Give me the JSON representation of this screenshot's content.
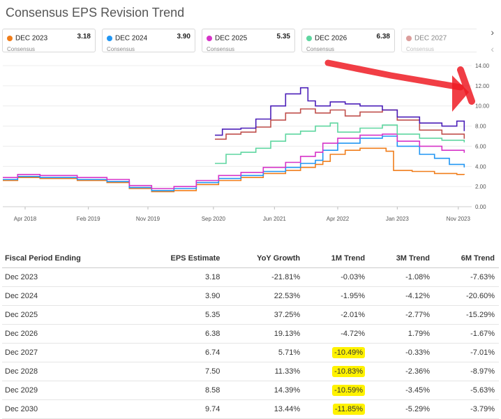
{
  "title": "Consensus EPS Revision Trend",
  "legend": [
    {
      "label": "DEC 2023",
      "value": "3.18",
      "sub": "Consensus",
      "color": "#f07d1a"
    },
    {
      "label": "DEC 2024",
      "value": "3.90",
      "sub": "Consensus",
      "color": "#2196f3"
    },
    {
      "label": "DEC 2025",
      "value": "5.35",
      "sub": "Consensus",
      "color": "#d633c8"
    },
    {
      "label": "DEC 2026",
      "value": "6.38",
      "sub": "Consensus",
      "color": "#5fd6a0"
    },
    {
      "label": "DEC 2027",
      "value": "",
      "sub": "Consensus",
      "color": "#c0504d"
    }
  ],
  "chart_data": {
    "type": "line",
    "title": "Consensus EPS Revision Trend",
    "xlabel": "",
    "ylabel": "",
    "x_ticks": [
      "Apr 2018",
      "Feb 2019",
      "Nov 2019",
      "Sep 2020",
      "Jun 2021",
      "Apr 2022",
      "Jan 2023",
      "Nov 2023"
    ],
    "y_ticks": [
      "0.00",
      "2.00",
      "4.00",
      "6.00",
      "8.00",
      "10.00",
      "12.00",
      "14.00"
    ],
    "ylim": [
      0,
      14
    ],
    "xlim": [
      2017.8,
      2024.1
    ],
    "grid": true,
    "series": [
      {
        "name": "DEC 2023",
        "color": "#f07d1a",
        "points": [
          [
            2017.8,
            2.6
          ],
          [
            2018.0,
            2.9
          ],
          [
            2018.3,
            2.8
          ],
          [
            2018.8,
            2.6
          ],
          [
            2019.2,
            2.4
          ],
          [
            2019.5,
            1.8
          ],
          [
            2019.8,
            1.5
          ],
          [
            2020.1,
            1.6
          ],
          [
            2020.4,
            2.2
          ],
          [
            2020.7,
            2.6
          ],
          [
            2021.0,
            2.9
          ],
          [
            2021.3,
            3.3
          ],
          [
            2021.6,
            3.6
          ],
          [
            2021.8,
            3.9
          ],
          [
            2022.0,
            4.2
          ],
          [
            2022.1,
            4.5
          ],
          [
            2022.2,
            5.2
          ],
          [
            2022.4,
            5.6
          ],
          [
            2022.6,
            5.8
          ],
          [
            2022.8,
            5.8
          ],
          [
            2022.95,
            5.5
          ],
          [
            2023.05,
            3.6
          ],
          [
            2023.3,
            3.5
          ],
          [
            2023.6,
            3.3
          ],
          [
            2023.9,
            3.2
          ],
          [
            2024.0,
            3.18
          ]
        ]
      },
      {
        "name": "DEC 2024",
        "color": "#2196f3",
        "points": [
          [
            2017.8,
            2.7
          ],
          [
            2018.0,
            3.0
          ],
          [
            2018.3,
            2.9
          ],
          [
            2018.8,
            2.7
          ],
          [
            2019.2,
            2.5
          ],
          [
            2019.5,
            1.9
          ],
          [
            2019.8,
            1.6
          ],
          [
            2020.1,
            1.8
          ],
          [
            2020.4,
            2.4
          ],
          [
            2020.7,
            2.8
          ],
          [
            2021.0,
            3.1
          ],
          [
            2021.3,
            3.5
          ],
          [
            2021.6,
            3.9
          ],
          [
            2021.8,
            4.3
          ],
          [
            2022.0,
            4.6
          ],
          [
            2022.1,
            5.6
          ],
          [
            2022.3,
            6.3
          ],
          [
            2022.6,
            6.8
          ],
          [
            2022.9,
            7.0
          ],
          [
            2023.1,
            6.0
          ],
          [
            2023.4,
            5.2
          ],
          [
            2023.6,
            4.8
          ],
          [
            2023.8,
            4.2
          ],
          [
            2024.0,
            3.9
          ]
        ]
      },
      {
        "name": "DEC 2025",
        "color": "#d633c8",
        "points": [
          [
            2017.8,
            2.9
          ],
          [
            2018.0,
            3.2
          ],
          [
            2018.3,
            3.1
          ],
          [
            2018.8,
            2.9
          ],
          [
            2019.2,
            2.7
          ],
          [
            2019.5,
            2.1
          ],
          [
            2019.8,
            1.8
          ],
          [
            2020.1,
            2.0
          ],
          [
            2020.4,
            2.6
          ],
          [
            2020.7,
            3.1
          ],
          [
            2021.0,
            3.4
          ],
          [
            2021.3,
            3.9
          ],
          [
            2021.6,
            4.4
          ],
          [
            2021.8,
            5.0
          ],
          [
            2022.0,
            5.4
          ],
          [
            2022.1,
            6.3
          ],
          [
            2022.3,
            6.8
          ],
          [
            2022.6,
            7.1
          ],
          [
            2022.9,
            7.2
          ],
          [
            2023.1,
            6.5
          ],
          [
            2023.4,
            6.0
          ],
          [
            2023.7,
            5.6
          ],
          [
            2024.0,
            5.35
          ]
        ]
      },
      {
        "name": "DEC 2026",
        "color": "#5fd6a0",
        "points": [
          [
            2020.65,
            4.3
          ],
          [
            2020.8,
            5.2
          ],
          [
            2021.0,
            5.4
          ],
          [
            2021.2,
            5.8
          ],
          [
            2021.4,
            6.5
          ],
          [
            2021.6,
            7.2
          ],
          [
            2021.8,
            7.5
          ],
          [
            2022.0,
            8.0
          ],
          [
            2022.2,
            8.3
          ],
          [
            2022.3,
            7.4
          ],
          [
            2022.6,
            7.8
          ],
          [
            2022.9,
            8.1
          ],
          [
            2023.1,
            7.2
          ],
          [
            2023.4,
            6.8
          ],
          [
            2023.7,
            6.6
          ],
          [
            2024.0,
            6.38
          ]
        ]
      },
      {
        "name": "DEC 2027",
        "color": "#c0504d",
        "points": [
          [
            2020.65,
            6.7
          ],
          [
            2020.8,
            7.2
          ],
          [
            2021.0,
            7.4
          ],
          [
            2021.2,
            7.9
          ],
          [
            2021.4,
            8.6
          ],
          [
            2021.6,
            9.3
          ],
          [
            2021.8,
            9.7
          ],
          [
            2022.0,
            9.3
          ],
          [
            2022.2,
            9.6
          ],
          [
            2022.4,
            9.0
          ],
          [
            2022.6,
            9.4
          ],
          [
            2022.9,
            9.6
          ],
          [
            2023.1,
            8.6
          ],
          [
            2023.4,
            7.6
          ],
          [
            2023.7,
            7.2
          ],
          [
            2024.0,
            6.74
          ]
        ]
      },
      {
        "name": "",
        "color": "#4b1fb8",
        "points": [
          [
            2020.65,
            7.1
          ],
          [
            2020.75,
            7.7
          ],
          [
            2021.0,
            7.8
          ],
          [
            2021.2,
            8.7
          ],
          [
            2021.4,
            10.0
          ],
          [
            2021.6,
            11.2
          ],
          [
            2021.8,
            11.8
          ],
          [
            2021.9,
            10.5
          ],
          [
            2022.0,
            10.0
          ],
          [
            2022.2,
            10.4
          ],
          [
            2022.4,
            10.2
          ],
          [
            2022.6,
            10.0
          ],
          [
            2022.9,
            9.6
          ],
          [
            2023.1,
            8.9
          ],
          [
            2023.4,
            8.3
          ],
          [
            2023.7,
            8.0
          ],
          [
            2023.9,
            8.5
          ],
          [
            2024.0,
            7.5
          ]
        ]
      }
    ]
  },
  "table": {
    "headers": [
      "Fiscal Period Ending",
      "EPS Estimate",
      "YoY Growth",
      "1M Trend",
      "3M Trend",
      "6M Trend"
    ],
    "rows": [
      {
        "period": "Dec 2023",
        "eps": "3.18",
        "yoy": "-21.81%",
        "m1": "-0.03%",
        "m3": "-1.08%",
        "m6": "-7.63%"
      },
      {
        "period": "Dec 2024",
        "eps": "3.90",
        "yoy": "22.53%",
        "m1": "-1.95%",
        "m3": "-4.12%",
        "m6": "-20.60%"
      },
      {
        "period": "Dec 2025",
        "eps": "5.35",
        "yoy": "37.25%",
        "m1": "-2.01%",
        "m3": "-2.77%",
        "m6": "-15.29%"
      },
      {
        "period": "Dec 2026",
        "eps": "6.38",
        "yoy": "19.13%",
        "m1": "-4.72%",
        "m3": "1.79%",
        "m6": "-1.67%"
      },
      {
        "period": "Dec 2027",
        "eps": "6.74",
        "yoy": "5.71%",
        "m1": "-10.49%",
        "m3": "-0.33%",
        "m6": "-7.01%"
      },
      {
        "period": "Dec 2028",
        "eps": "7.50",
        "yoy": "11.33%",
        "m1": "-10.83%",
        "m3": "-2.36%",
        "m6": "-8.97%"
      },
      {
        "period": "Dec 2029",
        "eps": "8.58",
        "yoy": "14.39%",
        "m1": "-10.59%",
        "m3": "-3.45%",
        "m6": "-5.63%"
      },
      {
        "period": "Dec 2030",
        "eps": "9.74",
        "yoy": "13.44%",
        "m1": "-11.85%",
        "m3": "-5.29%",
        "m6": "-3.79%"
      }
    ]
  },
  "highlight_rows": [
    4,
    5,
    6,
    7
  ],
  "annotation_color": "#ee1c25"
}
